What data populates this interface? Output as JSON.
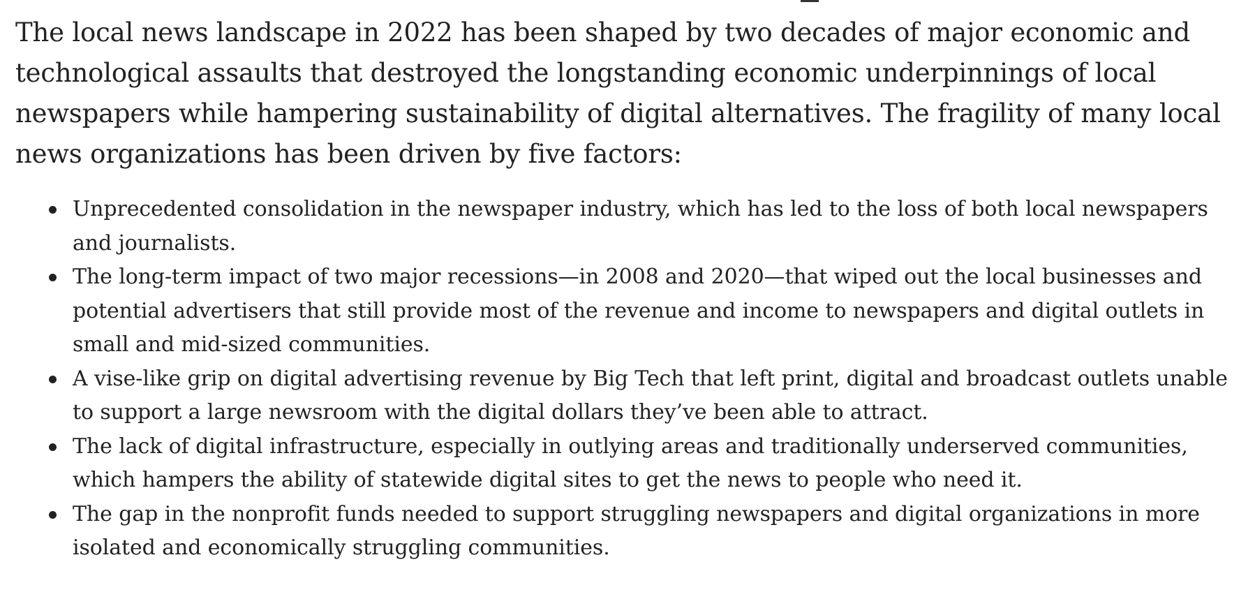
{
  "article": {
    "lead": "The local news landscape in 2022 has been shaped by two decades of major economic and technological assaults that destroyed the longstanding economic underpinnings of local newspapers while hampering sustainability of digital alternatives. The fragility of many local news organizations has been driven by five factors:",
    "factors": [
      "Unprecedented consolidation in the newspaper industry, which has led to the loss of both local newspapers and journalists.",
      "The long-term impact of two major recessions—in 2008 and 2020—that wiped out the local businesses and potential advertisers that still provide most of the revenue and income to newspapers and digital outlets in small and mid-sized communities.",
      "A vise-like grip on digital advertising revenue by Big Tech that left print, digital and broadcast outlets unable to support a large newsroom with the digital dollars they’ve been able to attract.",
      "The lack of digital infrastructure, especially in outlying areas and traditionally underserved communities, which hampers the ability of statewide digital sites to get the news to people who need it.",
      "The gap in the nonprofit funds needed to support struggling newspapers and digital organizations in more isolated and economically struggling communities."
    ]
  }
}
